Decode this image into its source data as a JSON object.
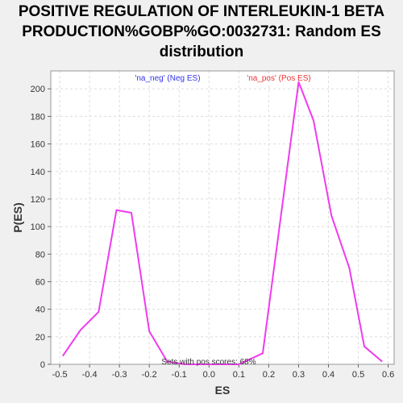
{
  "chart_data": {
    "type": "line",
    "title_lines": [
      "POSITIVE REGULATION OF INTERLEUKIN-1 BETA",
      "PRODUCTION%GOBP%GO:0032731: Random ES",
      "distribution"
    ],
    "xlabel": "ES",
    "ylabel": "P(ES)",
    "xlim": [
      -0.53,
      0.62
    ],
    "ylim": [
      0,
      213
    ],
    "x_ticks": [
      -0.5,
      -0.4,
      -0.3,
      -0.2,
      -0.1,
      0.0,
      0.1,
      0.2,
      0.3,
      0.4,
      0.5,
      0.6
    ],
    "x_tick_labels": [
      "-0.5",
      "-0.4",
      "-0.3",
      "-0.2",
      "-0.1",
      "0.0",
      "0.1",
      "0.2",
      "0.3",
      "0.4",
      "0.5",
      "0.6"
    ],
    "y_ticks": [
      0,
      20,
      40,
      60,
      80,
      100,
      120,
      140,
      160,
      180,
      200
    ],
    "y_tick_labels": [
      "0",
      "20",
      "40",
      "60",
      "80",
      "100",
      "120",
      "140",
      "160",
      "180",
      "200"
    ],
    "grid": true,
    "series": [
      {
        "color": "#ee3bee",
        "x": [
          -0.49,
          -0.43,
          -0.37,
          -0.31,
          -0.26,
          -0.2,
          -0.14,
          -0.08,
          -0.02,
          0.04,
          0.1,
          0.18,
          0.3,
          0.35,
          0.41,
          0.47,
          0.52,
          0.58
        ],
        "y": [
          6,
          25,
          38,
          112,
          110,
          24,
          2,
          0,
          0,
          0,
          0,
          8,
          205,
          177,
          108,
          70,
          13,
          2
        ]
      }
    ],
    "annotations": {
      "neg_label": "'na_neg' (Neg ES)",
      "pos_label": "'na_pos' (Pos ES)",
      "bottom_text": "Sets with pos scores: 68%",
      "neg_color": "#3333ee",
      "pos_color": "#ee3333"
    }
  }
}
